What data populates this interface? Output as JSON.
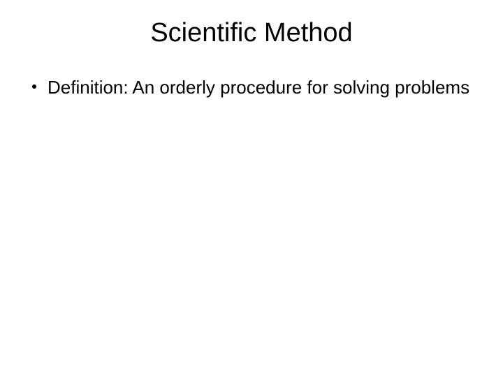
{
  "slide": {
    "title": "Scientific Method",
    "bullets": [
      {
        "text": "Definition: An orderly procedure for solving problems"
      }
    ],
    "style": {
      "background_color": "#ffffff",
      "text_color": "#000000",
      "title_fontsize": 38,
      "body_fontsize": 26,
      "font_family": "Arial"
    }
  }
}
